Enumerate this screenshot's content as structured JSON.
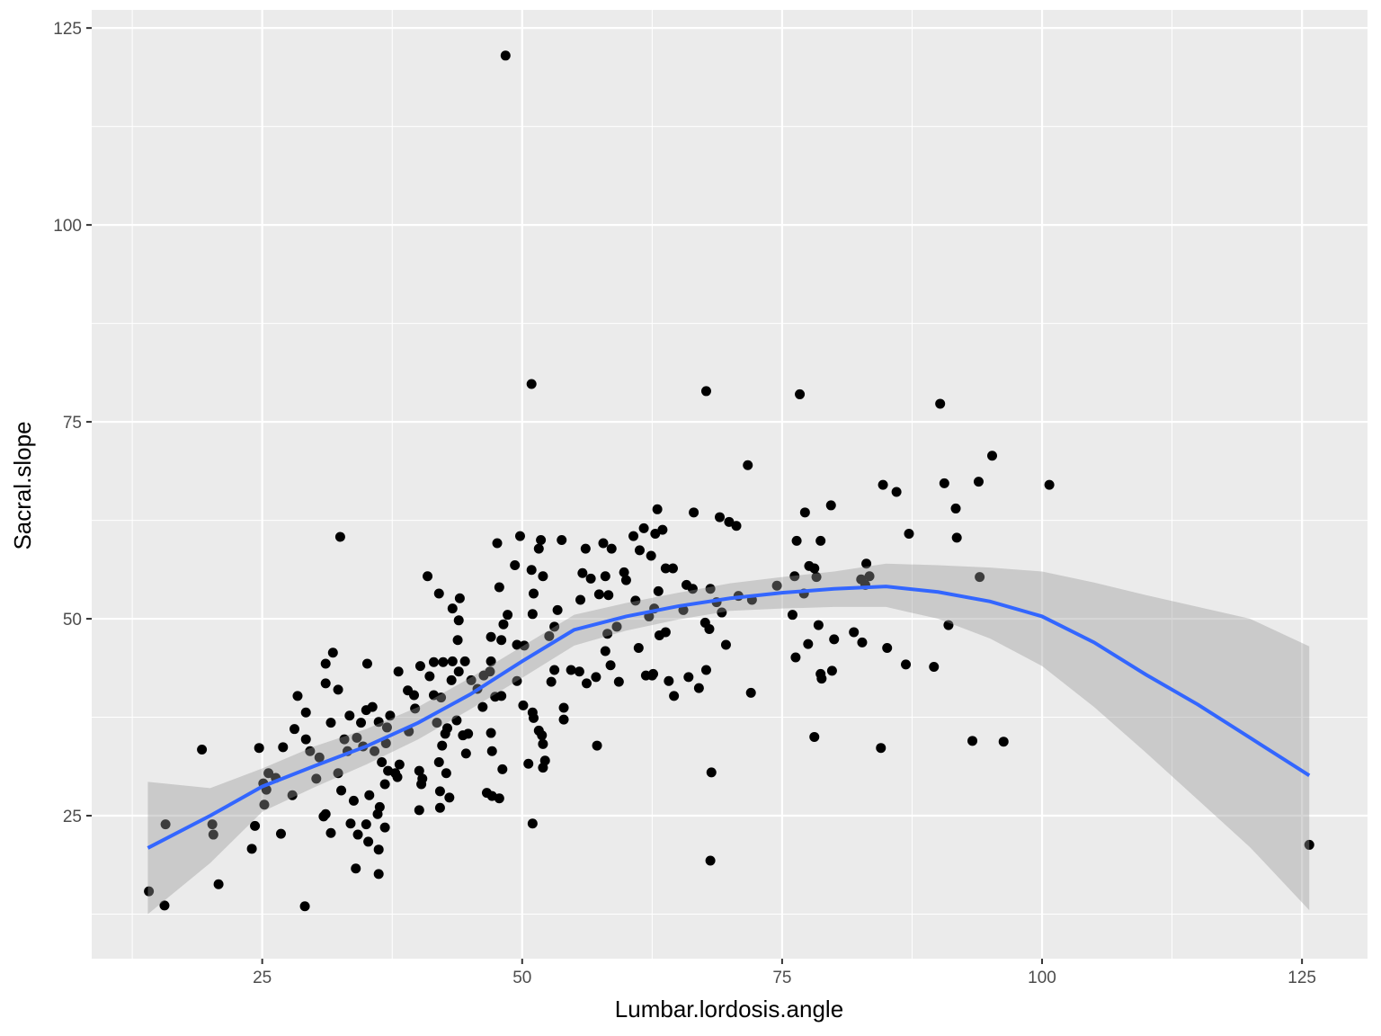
{
  "chart_data": {
    "type": "scatter",
    "x_label": "Lumbar.lordosis.angle",
    "y_label": "Sacral.slope",
    "color": "#000000",
    "panel_color": "#ebebeb",
    "grid": true,
    "xlim": [
      8.6,
      131.3
    ],
    "ylim": [
      6.85,
      127.3
    ],
    "xticks": [
      25,
      50,
      75,
      100,
      125
    ],
    "yticks": [
      25,
      50,
      75,
      100,
      125
    ],
    "x_minor_grid": [
      12.5,
      37.5,
      62.5,
      87.5,
      112.5
    ],
    "y_minor_grid": [
      12.5,
      37.5,
      62.5,
      87.5,
      112.5
    ],
    "x": [
      14.1,
      15.6,
      15.7,
      19.2,
      20.2,
      20.3,
      20.8,
      24.0,
      24.3,
      24.7,
      25.1,
      25.2,
      25.4,
      25.6,
      26.3,
      26.8,
      27.0,
      27.9,
      28.1,
      28.4,
      29.1,
      29.2,
      29.2,
      29.6,
      30.2,
      30.5,
      30.9,
      31.1,
      31.1,
      31.1,
      31.6,
      31.6,
      31.8,
      32.3,
      32.3,
      32.5,
      32.6,
      32.9,
      33.2,
      33.4,
      33.5,
      33.8,
      34.0,
      34.1,
      34.2,
      34.5,
      34.7,
      35.0,
      35.0,
      35.1,
      35.2,
      35.3,
      35.6,
      35.8,
      36.2,
      36.2,
      36.1,
      36.2,
      36.3,
      36.5,
      36.8,
      36.8,
      36.9,
      37.0,
      37.1,
      37.3,
      37.8,
      38.0,
      38.1,
      38.2,
      39.1,
      39.0,
      39.6,
      39.7,
      40.1,
      40.1,
      40.2,
      40.3,
      40.4,
      40.9,
      41.1,
      41.5,
      41.5,
      41.8,
      42.0,
      42.0,
      42.1,
      42.1,
      42.2,
      42.3,
      42.4,
      42.6,
      42.7,
      42.8,
      43.0,
      43.2,
      43.3,
      43.3,
      43.7,
      43.8,
      43.9,
      43.9,
      44.0,
      44.3,
      44.5,
      44.6,
      44.8,
      45.1,
      45.7,
      46.2,
      46.3,
      46.6,
      46.9,
      47.0,
      47.0,
      47.0,
      47.1,
      47.1,
      47.4,
      47.6,
      47.8,
      47.8,
      48.0,
      48.0,
      48.1,
      48.2,
      48.4,
      48.6,
      49.3,
      49.5,
      49.5,
      49.8,
      50.1,
      50.2,
      50.6,
      50.9,
      50.9,
      51.0,
      51.0,
      51.0,
      51.1,
      51.1,
      51.6,
      51.6,
      51.8,
      51.9,
      52.0,
      52.0,
      52.0,
      52.2,
      52.6,
      52.8,
      53.1,
      53.1,
      53.4,
      53.8,
      54.0,
      54.0,
      54.7,
      55.5,
      55.6,
      55.8,
      56.1,
      56.2,
      56.6,
      57.1,
      57.2,
      57.4,
      57.8,
      58.0,
      58.0,
      58.2,
      58.3,
      58.5,
      58.6,
      59.1,
      59.3,
      59.8,
      60.0,
      60.7,
      60.9,
      61.2,
      61.3,
      61.7,
      61.9,
      62.2,
      62.4,
      62.5,
      62.6,
      62.7,
      62.8,
      63.0,
      63.1,
      63.2,
      63.5,
      63.8,
      63.8,
      64.1,
      64.5,
      64.6,
      65.5,
      65.8,
      66.0,
      66.4,
      66.5,
      67.0,
      67.7,
      67.6,
      67.7,
      68.0,
      68.1,
      68.1,
      68.2,
      68.7,
      69.0,
      69.2,
      69.6,
      69.9,
      70.6,
      70.8,
      71.7,
      72.0,
      72.1,
      74.5,
      76.0,
      76.2,
      76.3,
      76.4,
      76.7,
      77.1,
      77.2,
      77.5,
      77.6,
      78.1,
      78.1,
      78.3,
      78.5,
      78.7,
      78.7,
      78.8,
      79.7,
      79.8,
      80.0,
      81.9,
      82.6,
      82.7,
      83.0,
      83.1,
      83.4,
      84.5,
      84.7,
      85.1,
      86.0,
      86.9,
      87.2,
      89.6,
      90.2,
      90.6,
      91.0,
      91.7,
      91.8,
      93.3,
      93.9,
      94.0,
      95.2,
      96.3,
      100.7,
      125.7
    ],
    "y": [
      15.4,
      13.6,
      23.9,
      33.4,
      23.9,
      22.6,
      16.3,
      20.8,
      23.7,
      33.6,
      29.1,
      26.4,
      28.3,
      30.4,
      29.8,
      22.7,
      33.7,
      27.6,
      36.0,
      40.2,
      13.5,
      38.1,
      34.7,
      33.2,
      29.7,
      32.4,
      24.9,
      25.2,
      44.3,
      41.8,
      22.8,
      36.8,
      45.7,
      41.0,
      30.4,
      60.4,
      28.2,
      34.7,
      33.2,
      37.7,
      24.0,
      26.9,
      18.3,
      34.9,
      22.6,
      36.8,
      33.8,
      38.4,
      23.9,
      44.3,
      21.7,
      27.6,
      38.8,
      33.2,
      17.6,
      36.9,
      25.2,
      20.7,
      26.1,
      31.8,
      29.0,
      23.5,
      34.2,
      36.2,
      30.7,
      37.7,
      30.4,
      29.9,
      43.3,
      31.5,
      35.7,
      40.9,
      40.3,
      38.6,
      30.7,
      25.7,
      44.0,
      29.0,
      29.7,
      55.4,
      42.7,
      44.5,
      40.3,
      36.8,
      53.2,
      31.8,
      28.1,
      26.0,
      40.0,
      33.9,
      44.5,
      35.4,
      30.4,
      36.1,
      27.3,
      42.2,
      51.3,
      44.6,
      37.1,
      47.3,
      43.3,
      49.8,
      52.6,
      35.2,
      44.6,
      32.9,
      35.4,
      42.2,
      41.1,
      38.8,
      42.8,
      27.9,
      43.3,
      35.5,
      44.6,
      47.7,
      33.2,
      27.5,
      40.1,
      59.6,
      27.2,
      54.0,
      47.3,
      40.2,
      30.9,
      49.3,
      121.5,
      50.5,
      56.8,
      42.1,
      46.7,
      60.5,
      39.0,
      46.6,
      31.6,
      79.8,
      56.2,
      24.0,
      38.1,
      50.6,
      37.4,
      53.2,
      58.9,
      35.8,
      60.0,
      35.2,
      34.1,
      31.1,
      55.4,
      32.0,
      47.8,
      42.0,
      49.0,
      43.5,
      51.1,
      60.0,
      37.2,
      38.7,
      43.5,
      43.3,
      52.4,
      55.8,
      58.9,
      41.8,
      55.1,
      42.6,
      33.9,
      53.1,
      59.6,
      55.4,
      45.9,
      48.1,
      53.0,
      44.1,
      58.9,
      49.0,
      42.0,
      55.9,
      54.9,
      60.5,
      52.3,
      46.3,
      58.7,
      61.5,
      42.8,
      50.3,
      58.0,
      42.8,
      43.0,
      51.3,
      60.8,
      63.9,
      53.5,
      47.9,
      61.3,
      48.3,
      56.4,
      42.1,
      56.4,
      40.2,
      51.1,
      54.3,
      42.6,
      53.8,
      63.5,
      41.2,
      43.5,
      49.5,
      78.9,
      48.7,
      53.8,
      19.3,
      30.5,
      52.1,
      62.9,
      50.8,
      46.7,
      62.3,
      61.8,
      52.9,
      69.5,
      40.6,
      52.4,
      54.2,
      50.5,
      55.4,
      45.1,
      59.9,
      78.5,
      53.2,
      63.5,
      46.8,
      56.7,
      56.4,
      35.0,
      55.3,
      49.2,
      59.9,
      43.0,
      42.4,
      64.4,
      43.4,
      47.4,
      48.3,
      55.0,
      47.0,
      54.3,
      57.0,
      55.4,
      33.6,
      67.0,
      46.3,
      66.1,
      44.2,
      60.8,
      43.9,
      77.3,
      67.2,
      49.2,
      64.0,
      60.3,
      34.5,
      67.4,
      55.3,
      70.7,
      34.4,
      67.0,
      21.3
    ],
    "smooth": {
      "color": "#3366ff",
      "band_color": "#999999",
      "x": [
        14,
        20,
        25,
        30,
        35,
        40,
        45,
        50,
        55,
        60,
        65,
        70,
        75,
        80,
        85,
        90,
        95,
        100,
        105,
        110,
        115,
        120,
        125.7
      ],
      "y": [
        20.9,
        25.0,
        28.7,
        31.3,
        33.8,
        36.8,
        40.4,
        44.6,
        48.6,
        50.3,
        51.6,
        52.6,
        53.3,
        53.8,
        54.1,
        53.4,
        52.2,
        50.3,
        47.0,
        42.9,
        39.1,
        34.9,
        30.1
      ],
      "lower": [
        12.5,
        19.0,
        25.5,
        28.6,
        31.5,
        34.7,
        38.5,
        42.5,
        46.6,
        48.5,
        49.9,
        51.0,
        51.3,
        51.5,
        51.5,
        50.0,
        47.5,
        44.0,
        38.8,
        33.0,
        27.0,
        21.0,
        13.0
      ],
      "upper": [
        29.3,
        28.5,
        31.0,
        33.8,
        36.0,
        38.8,
        42.5,
        46.5,
        50.5,
        52.0,
        53.3,
        54.5,
        55.3,
        56.0,
        57.0,
        56.8,
        56.5,
        56.0,
        54.6,
        53.0,
        51.5,
        50.0,
        46.5
      ]
    }
  }
}
